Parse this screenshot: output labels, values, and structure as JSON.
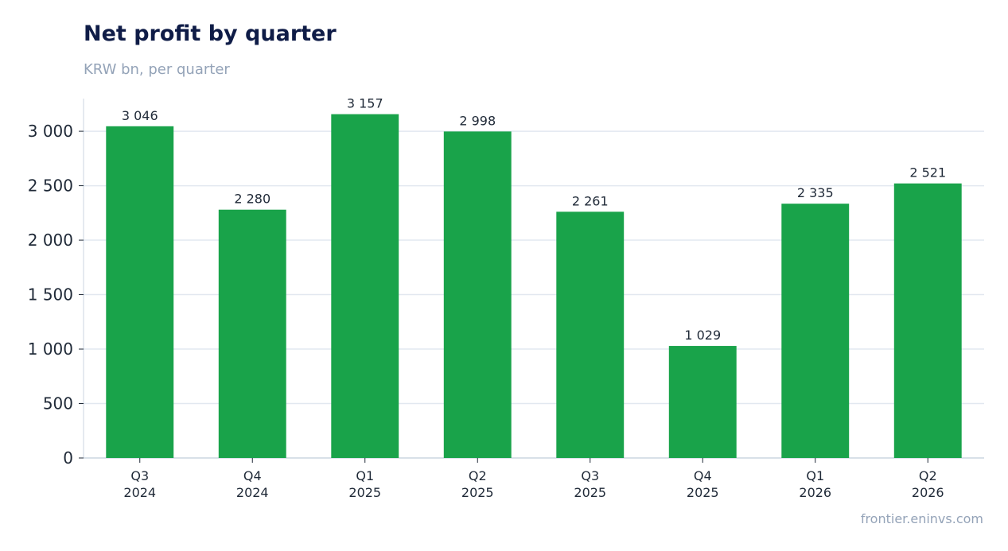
{
  "chart_data": {
    "type": "bar",
    "title": "Net profit by quarter",
    "subtitle": "KRW bn, per quarter",
    "source": "frontier.eninvs.com",
    "categories": [
      [
        "Q3",
        "2024"
      ],
      [
        "Q4",
        "2024"
      ],
      [
        "Q1",
        "2025"
      ],
      [
        "Q2",
        "2025"
      ],
      [
        "Q3",
        "2025"
      ],
      [
        "Q4",
        "2025"
      ],
      [
        "Q1",
        "2026"
      ],
      [
        "Q2",
        "2026"
      ]
    ],
    "values": [
      3046,
      2280,
      3157,
      2998,
      2261,
      1029,
      2335,
      2521
    ],
    "value_labels": [
      "3 046",
      "2 280",
      "3 157",
      "2 998",
      "2 261",
      "1 029",
      "2 335",
      "2 521"
    ],
    "y_ticks": [
      0,
      500,
      1000,
      1500,
      2000,
      2500,
      3000
    ],
    "y_tick_labels": [
      "0",
      "500",
      "1 000",
      "1 500",
      "2 000",
      "2 500",
      "3 000"
    ],
    "ylim": [
      0,
      3300
    ],
    "grid": true,
    "legend": "none",
    "colors": {
      "bar": "#19a34a",
      "grid": "#e2e8f0",
      "axis": "#cbd5e1",
      "title": "#0f1c47",
      "muted": "#94a3b8"
    }
  }
}
